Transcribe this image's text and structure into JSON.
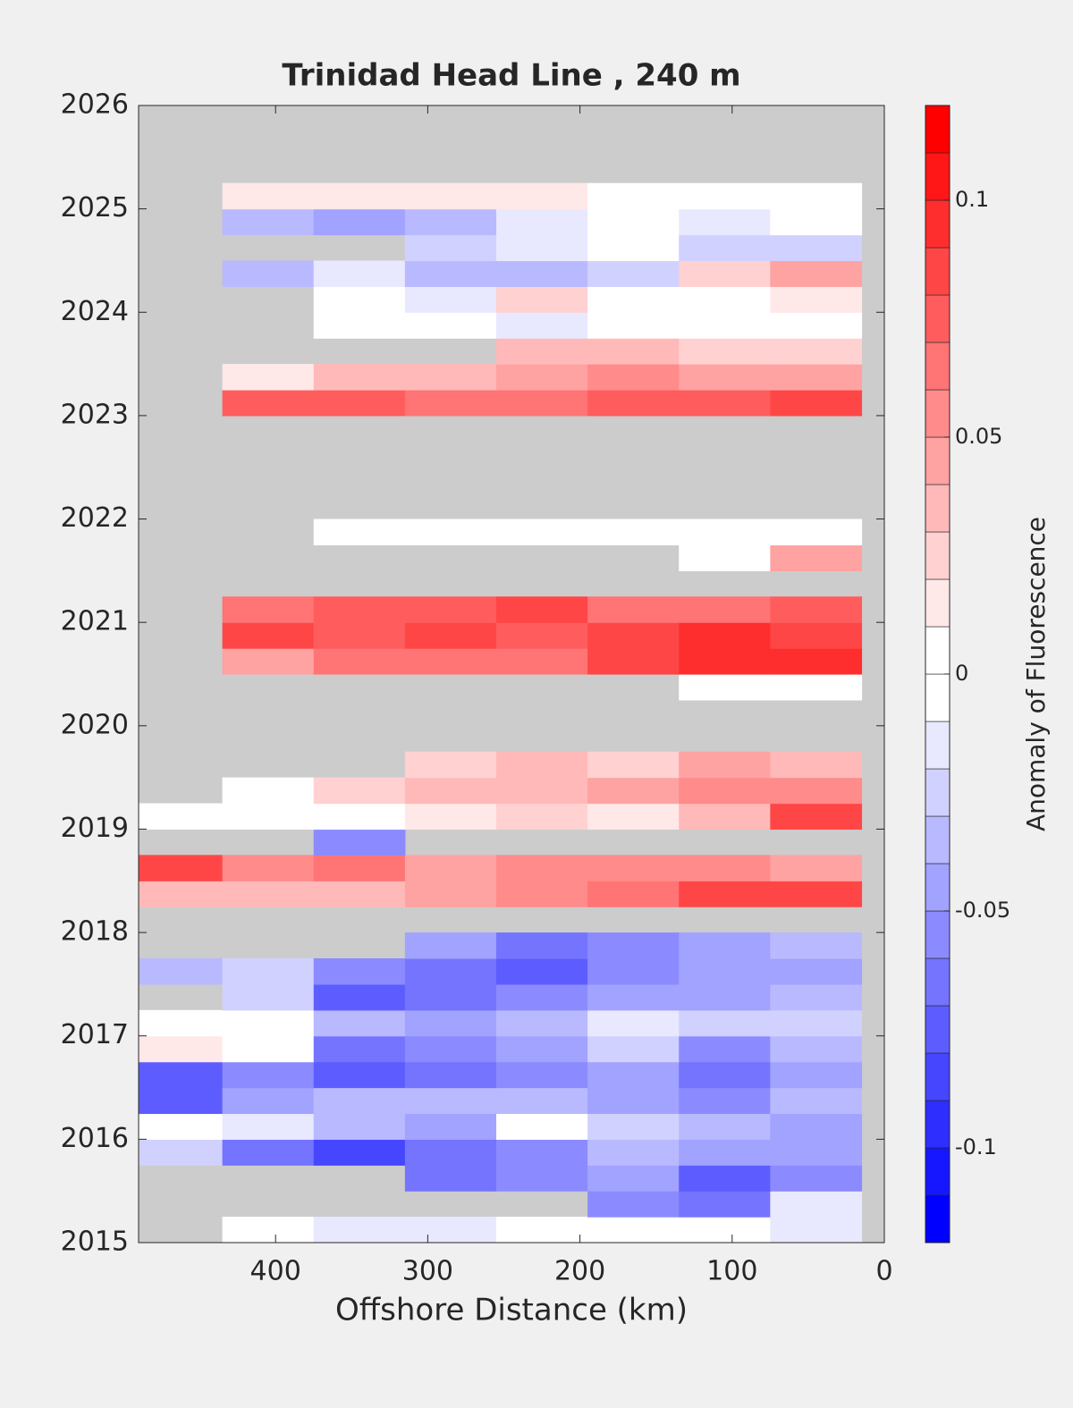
{
  "chart_data": {
    "type": "heatmap",
    "title": "Trinidad Head Line , 240 m",
    "xlabel": "Offshore Distance (km)",
    "colorbar_label": "Anomaly of Fluorescence",
    "xlim": [
      490,
      0
    ],
    "xticks": [
      400,
      300,
      200,
      100,
      0
    ],
    "ylim": [
      2015,
      2026
    ],
    "yticks": [
      2015,
      2016,
      2017,
      2018,
      2019,
      2020,
      2021,
      2022,
      2023,
      2024,
      2025,
      2026
    ],
    "clim": [
      -0.12,
      0.12
    ],
    "cticks": [
      -0.1,
      -0.05,
      0,
      0.05,
      0.1
    ],
    "level_step": 0.01,
    "x": [
      465,
      405,
      345,
      285,
      225,
      165,
      105,
      45
    ],
    "y": [
      2015.125,
      2015.375,
      2015.625,
      2015.875,
      2016.125,
      2016.375,
      2016.625,
      2016.875,
      2017.125,
      2017.375,
      2017.625,
      2017.875,
      2018.125,
      2018.375,
      2018.625,
      2018.875,
      2019.125,
      2019.375,
      2019.625,
      2019.875,
      2020.125,
      2020.375,
      2020.625,
      2020.875,
      2021.125,
      2021.375,
      2021.625,
      2021.875,
      2022.125,
      2022.375,
      2022.625,
      2022.875,
      2023.125,
      2023.375,
      2023.625,
      2023.875,
      2024.125,
      2024.375,
      2024.625,
      2024.875,
      2025.125
    ],
    "values": [
      [
        null,
        -0.01,
        -0.02,
        -0.02,
        -0.01,
        0,
        -0.01,
        -0.02
      ],
      [
        null,
        null,
        null,
        null,
        null,
        -0.06,
        -0.07,
        -0.02
      ],
      [
        null,
        null,
        null,
        -0.07,
        -0.06,
        -0.05,
        -0.08,
        -0.06
      ],
      [
        -0.03,
        -0.07,
        -0.09,
        -0.07,
        -0.06,
        -0.04,
        -0.05,
        -0.05
      ],
      [
        0,
        -0.02,
        -0.04,
        -0.05,
        -0.01,
        -0.03,
        -0.04,
        -0.05
      ],
      [
        -0.08,
        -0.05,
        -0.04,
        -0.04,
        -0.04,
        -0.05,
        -0.06,
        -0.04
      ],
      [
        -0.08,
        -0.06,
        -0.08,
        -0.07,
        -0.06,
        -0.05,
        -0.07,
        -0.05
      ],
      [
        0.01,
        0,
        -0.07,
        -0.06,
        -0.05,
        -0.03,
        -0.06,
        -0.04
      ],
      [
        0,
        -0.01,
        -0.04,
        -0.05,
        -0.04,
        -0.02,
        -0.03,
        -0.03
      ],
      [
        null,
        -0.03,
        -0.08,
        -0.07,
        -0.06,
        -0.05,
        -0.05,
        -0.04
      ],
      [
        -0.04,
        -0.03,
        -0.06,
        -0.07,
        -0.08,
        -0.06,
        -0.05,
        -0.05
      ],
      [
        null,
        null,
        null,
        -0.05,
        -0.07,
        -0.06,
        -0.05,
        -0.04
      ],
      [
        null,
        null,
        null,
        null,
        null,
        null,
        null,
        null
      ],
      [
        0.03,
        0.03,
        0.03,
        0.04,
        0.05,
        0.06,
        0.08,
        0.08
      ],
      [
        0.08,
        0.05,
        0.06,
        0.04,
        0.05,
        0.05,
        0.05,
        0.04
      ],
      [
        null,
        null,
        -0.06,
        null,
        null,
        null,
        null,
        null
      ],
      [
        0,
        -0.01,
        0,
        0.01,
        0.02,
        0.01,
        0.03,
        0.08
      ],
      [
        null,
        0,
        0.02,
        0.03,
        0.03,
        0.04,
        0.05,
        0.05
      ],
      [
        null,
        null,
        null,
        0.02,
        0.03,
        0.02,
        0.04,
        0.03
      ],
      [
        null,
        null,
        null,
        null,
        null,
        null,
        null,
        null
      ],
      [
        null,
        null,
        null,
        null,
        null,
        null,
        null,
        null
      ],
      [
        null,
        null,
        null,
        null,
        null,
        null,
        -0.01,
        0
      ],
      [
        null,
        0.04,
        0.06,
        0.06,
        0.06,
        0.08,
        0.09,
        0.09
      ],
      [
        null,
        0.08,
        0.07,
        0.08,
        0.07,
        0.08,
        0.09,
        0.08
      ],
      [
        null,
        0.06,
        0.07,
        0.07,
        0.08,
        0.06,
        0.06,
        0.07
      ],
      [
        null,
        null,
        null,
        null,
        null,
        null,
        null,
        null
      ],
      [
        null,
        null,
        null,
        null,
        null,
        null,
        0,
        0.04
      ],
      [
        null,
        null,
        0,
        -0.01,
        -0.01,
        0,
        0,
        0
      ],
      [
        null,
        null,
        null,
        null,
        null,
        null,
        null,
        null
      ],
      [
        null,
        null,
        null,
        null,
        null,
        null,
        null,
        null
      ],
      [
        null,
        null,
        null,
        null,
        null,
        null,
        null,
        null
      ],
      [
        null,
        null,
        null,
        null,
        null,
        null,
        null,
        null
      ],
      [
        null,
        0.07,
        0.07,
        0.06,
        0.06,
        0.07,
        0.07,
        0.08
      ],
      [
        null,
        0.01,
        0.03,
        0.03,
        0.04,
        0.05,
        0.04,
        0.04
      ],
      [
        null,
        null,
        null,
        null,
        0.03,
        0.03,
        0.02,
        0.02
      ],
      [
        null,
        null,
        -0.01,
        -0.01,
        -0.02,
        -0.01,
        0,
        0
      ],
      [
        null,
        null,
        -0.01,
        -0.02,
        0.02,
        -0.01,
        -0.01,
        0.01
      ],
      [
        null,
        -0.04,
        -0.02,
        -0.04,
        -0.04,
        -0.03,
        0.02,
        0.04
      ],
      [
        null,
        null,
        null,
        -0.03,
        -0.02,
        0,
        -0.03,
        -0.03
      ],
      [
        null,
        -0.04,
        -0.05,
        -0.04,
        -0.02,
        -0.01,
        -0.02,
        -0.01
      ],
      [
        null,
        0.01,
        0.01,
        0.01,
        0.01,
        0,
        0,
        0
      ]
    ]
  }
}
